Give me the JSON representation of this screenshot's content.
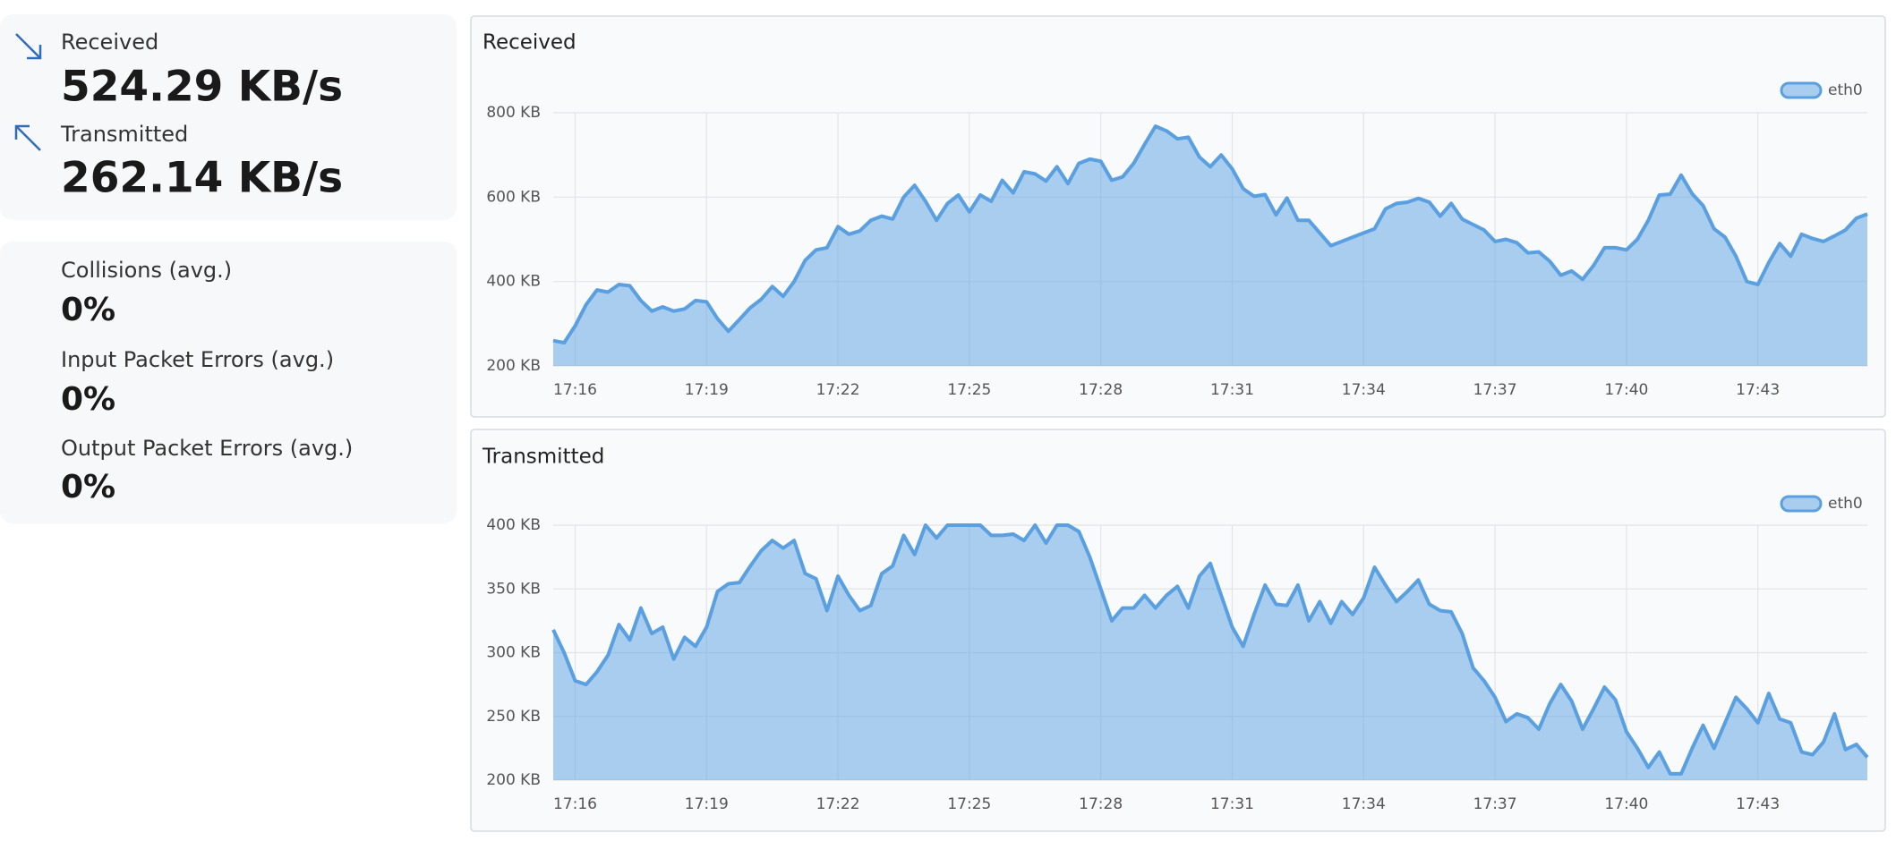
{
  "stats": {
    "received": {
      "label": "Received",
      "value": "524.29 KB/s"
    },
    "transmitted": {
      "label": "Transmitted",
      "value": "262.14 KB/s"
    },
    "errors": [
      {
        "label": "Collisions (avg.)",
        "value": "0%"
      },
      {
        "label": "Input Packet Errors (avg.)",
        "value": "0%"
      },
      {
        "label": "Output Packet Errors (avg.)",
        "value": "0%"
      }
    ]
  },
  "chart_data": [
    {
      "type": "area",
      "title": "Received",
      "legend": "top-right",
      "grid": true,
      "categories": [
        null,
        null,
        "17:16",
        null,
        null,
        null,
        null,
        null,
        null,
        null,
        null,
        null,
        null,
        null,
        "17:19",
        null,
        null,
        null,
        null,
        null,
        null,
        null,
        null,
        null,
        null,
        null,
        "17:22",
        null,
        null,
        null,
        null,
        null,
        null,
        null,
        null,
        null,
        null,
        null,
        "17:25",
        null,
        null,
        null,
        null,
        null,
        null,
        null,
        null,
        null,
        null,
        null,
        "17:28",
        null,
        null,
        null,
        null,
        null,
        null,
        null,
        null,
        null,
        null,
        null,
        "17:31",
        null,
        null,
        null,
        null,
        null,
        null,
        null,
        null,
        null,
        null,
        null,
        "17:34",
        null,
        null,
        null,
        null,
        null,
        null,
        null,
        null,
        null,
        null,
        null,
        "17:37",
        null,
        null,
        null,
        null,
        null,
        null,
        null,
        null,
        null,
        null,
        null,
        "17:40",
        null,
        null,
        null,
        null,
        null,
        null,
        null,
        null,
        null,
        null,
        null,
        "17:43",
        null,
        null,
        null,
        null,
        null,
        null,
        null,
        null,
        null,
        null
      ],
      "ylim": [
        200,
        800
      ],
      "yticks": [
        {
          "value": 200,
          "label": "200 KB"
        },
        {
          "value": 400,
          "label": "400 KB"
        },
        {
          "value": 600,
          "label": "600 KB"
        },
        {
          "value": 800,
          "label": "800 KB"
        }
      ],
      "series": [
        {
          "name": "eth0",
          "color": "#5a9fe0",
          "values": [
            260,
            255,
            295,
            345,
            380,
            375,
            393,
            390,
            355,
            330,
            340,
            330,
            335,
            355,
            352,
            312,
            282,
            310,
            338,
            358,
            388,
            365,
            400,
            450,
            475,
            480,
            530,
            512,
            520,
            545,
            555,
            548,
            600,
            628,
            590,
            545,
            585,
            605,
            565,
            605,
            590,
            640,
            610,
            660,
            655,
            638,
            672,
            632,
            680,
            690,
            685,
            640,
            648,
            680,
            725,
            768,
            757,
            738,
            742,
            695,
            672,
            700,
            667,
            620,
            602,
            606,
            558,
            598,
            545,
            545,
            515,
            485,
            495,
            505,
            515,
            525,
            572,
            585,
            588,
            597,
            588,
            555,
            585,
            548,
            535,
            522,
            495,
            500,
            492,
            468,
            470,
            448,
            415,
            425,
            405,
            438,
            480,
            480,
            475,
            500,
            545,
            605,
            607,
            652,
            608,
            580,
            525,
            505,
            460,
            400,
            393,
            445,
            490,
            460,
            512,
            502,
            495,
            508,
            522,
            550,
            560
          ]
        }
      ]
    },
    {
      "type": "area",
      "title": "Transmitted",
      "legend": "top-right",
      "grid": true,
      "categories": [
        null,
        null,
        "17:16",
        null,
        null,
        null,
        null,
        null,
        null,
        null,
        null,
        null,
        null,
        null,
        "17:19",
        null,
        null,
        null,
        null,
        null,
        null,
        null,
        null,
        null,
        null,
        null,
        "17:22",
        null,
        null,
        null,
        null,
        null,
        null,
        null,
        null,
        null,
        null,
        null,
        "17:25",
        null,
        null,
        null,
        null,
        null,
        null,
        null,
        null,
        null,
        null,
        null,
        "17:28",
        null,
        null,
        null,
        null,
        null,
        null,
        null,
        null,
        null,
        null,
        null,
        "17:31",
        null,
        null,
        null,
        null,
        null,
        null,
        null,
        null,
        null,
        null,
        null,
        "17:34",
        null,
        null,
        null,
        null,
        null,
        null,
        null,
        null,
        null,
        null,
        null,
        "17:37",
        null,
        null,
        null,
        null,
        null,
        null,
        null,
        null,
        null,
        null,
        null,
        "17:40",
        null,
        null,
        null,
        null,
        null,
        null,
        null,
        null,
        null,
        null,
        null,
        "17:43",
        null,
        null,
        null,
        null,
        null,
        null,
        null,
        null,
        null,
        null
      ],
      "ylim": [
        200,
        400
      ],
      "yticks": [
        {
          "value": 200,
          "label": "200 KB"
        },
        {
          "value": 250,
          "label": "250 KB"
        },
        {
          "value": 300,
          "label": "300 KB"
        },
        {
          "value": 350,
          "label": "350 KB"
        },
        {
          "value": 400,
          "label": "400 KB"
        }
      ],
      "series": [
        {
          "name": "eth0",
          "color": "#5a9fe0",
          "values": [
            318,
            300,
            278,
            275,
            285,
            298,
            322,
            310,
            335,
            315,
            320,
            295,
            312,
            305,
            320,
            348,
            354,
            355,
            368,
            380,
            388,
            382,
            388,
            362,
            358,
            333,
            360,
            345,
            333,
            337,
            362,
            368,
            392,
            377,
            400,
            390,
            400,
            400,
            400,
            400,
            392,
            392,
            393,
            388,
            400,
            386,
            400,
            400,
            395,
            375,
            350,
            325,
            335,
            335,
            345,
            335,
            345,
            352,
            335,
            360,
            370,
            345,
            320,
            305,
            330,
            353,
            338,
            337,
            353,
            325,
            340,
            323,
            340,
            330,
            343,
            367,
            353,
            340,
            348,
            357,
            338,
            333,
            332,
            315,
            288,
            278,
            265,
            246,
            252,
            249,
            240,
            260,
            275,
            262,
            240,
            256,
            273,
            263,
            238,
            225,
            210,
            222,
            205,
            205,
            225,
            243,
            225,
            245,
            265,
            256,
            245,
            268,
            248,
            245,
            222,
            220,
            230,
            252,
            224,
            228,
            218
          ]
        }
      ]
    }
  ]
}
